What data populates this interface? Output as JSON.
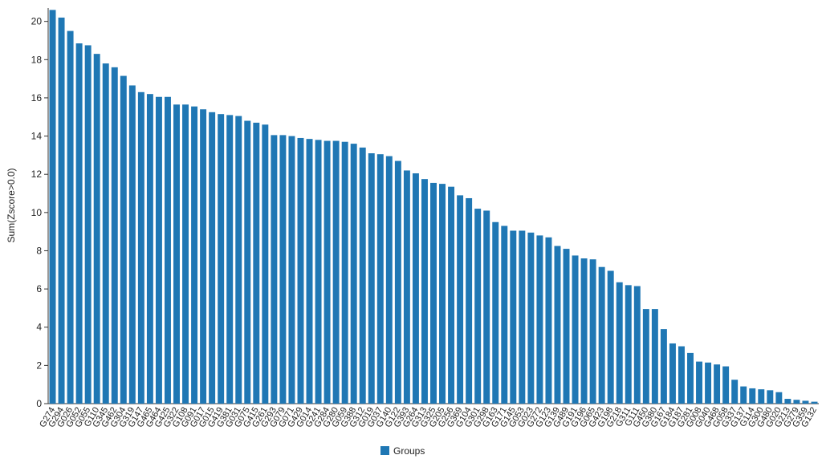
{
  "chart_data": {
    "type": "bar",
    "y_label": "Sum(Zscore>0.0)",
    "legend": "Groups",
    "color": "#1f77b4",
    "categories": [
      "G274",
      "G294",
      "G026",
      "G052",
      "G055",
      "G110",
      "G345",
      "G462",
      "G304",
      "G319",
      "G147",
      "G465",
      "G464",
      "G425",
      "G322",
      "G108",
      "G091",
      "G017",
      "G015",
      "G419",
      "G381",
      "G031",
      "G075",
      "G415",
      "G261",
      "G293",
      "G079",
      "G071",
      "G429",
      "G014",
      "G241",
      "G284",
      "G280",
      "G059",
      "G388",
      "G312",
      "G019",
      "G037",
      "G140",
      "G122",
      "G393",
      "G264",
      "G313",
      "G325",
      "G205",
      "G256",
      "G369",
      "G104",
      "G301",
      "G298",
      "G163",
      "G171",
      "G145",
      "G053",
      "G023",
      "G272",
      "G123",
      "G139",
      "G489",
      "G191",
      "G196",
      "G065",
      "G423",
      "G198",
      "G218",
      "G311",
      "G111",
      "G450",
      "G380",
      "G167",
      "G184",
      "G187",
      "G281",
      "G008",
      "G040",
      "G468",
      "G058",
      "G337",
      "G137",
      "G114",
      "G300",
      "G480",
      "G020",
      "G213",
      "G279",
      "G359",
      "G132"
    ],
    "values": [
      20.6,
      20.2,
      19.5,
      18.85,
      18.75,
      18.3,
      17.8,
      17.6,
      17.15,
      16.65,
      16.3,
      16.2,
      16.05,
      16.05,
      15.65,
      15.65,
      15.55,
      15.4,
      15.25,
      15.15,
      15.1,
      15.05,
      14.8,
      14.7,
      14.6,
      14.05,
      14.05,
      14.0,
      13.9,
      13.85,
      13.8,
      13.75,
      13.75,
      13.7,
      13.6,
      13.4,
      13.1,
      13.05,
      12.95,
      12.7,
      12.2,
      12.05,
      11.75,
      11.55,
      11.5,
      11.35,
      10.9,
      10.75,
      10.2,
      10.1,
      9.5,
      9.3,
      9.05,
      9.05,
      8.95,
      8.8,
      8.7,
      8.25,
      8.1,
      7.75,
      7.6,
      7.55,
      7.15,
      6.95,
      6.35,
      6.2,
      6.15,
      4.95,
      4.95,
      3.9,
      3.15,
      3.0,
      2.65,
      2.2,
      2.15,
      2.05,
      1.95,
      1.25,
      0.9,
      0.8,
      0.75,
      0.7,
      0.6,
      0.25,
      0.2,
      0.15,
      0.1
    ],
    "ylim": [
      0,
      20.7
    ],
    "yticks": [
      0,
      2,
      4,
      6,
      8,
      10,
      12,
      14,
      16,
      18,
      20
    ]
  }
}
